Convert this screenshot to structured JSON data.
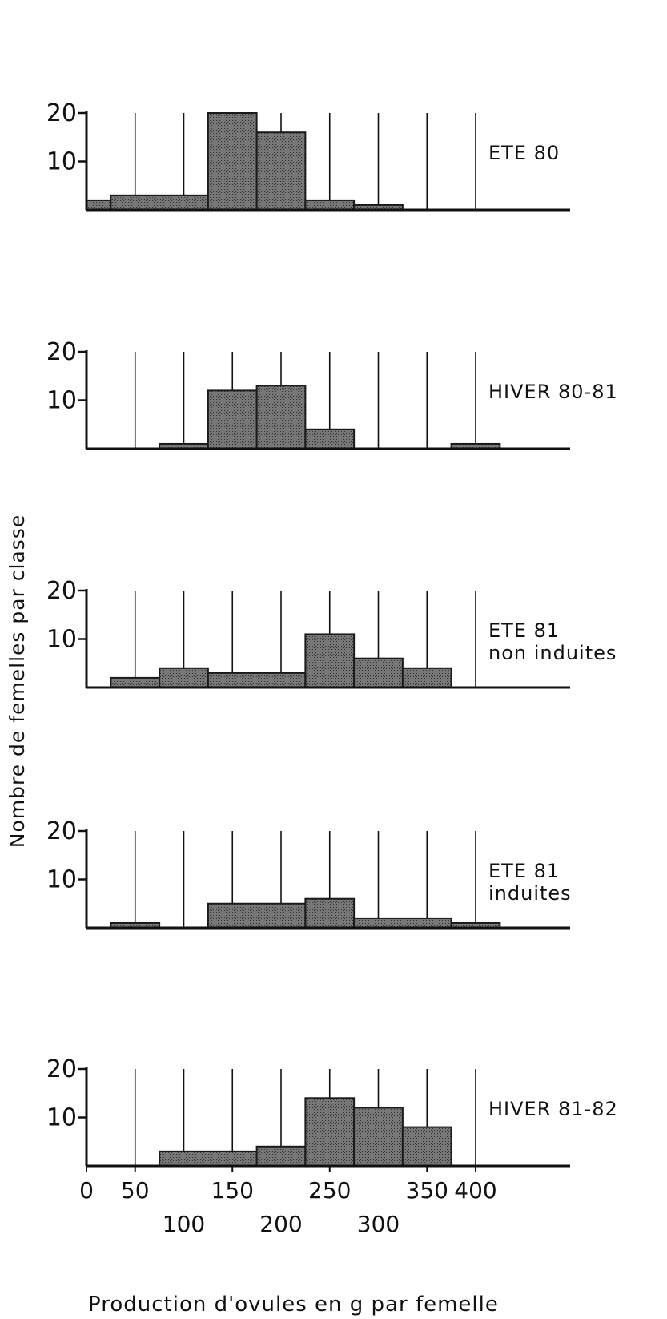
{
  "chart_data": {
    "type": "bar",
    "title": "",
    "xlabel": "Production d'ovules en g par femelle",
    "ylabel": "Nombre de femelles par classe",
    "xlim": [
      0,
      480
    ],
    "x_ticks_row1": [
      "0",
      "50",
      "150",
      "250",
      "350",
      "400"
    ],
    "x_ticks_row2": [
      "100",
      "200",
      "300"
    ],
    "x_tick_values_row1": [
      0,
      50,
      150,
      250,
      350,
      400
    ],
    "x_tick_values_row2": [
      100,
      200,
      300
    ],
    "grid_x": [
      50,
      100,
      150,
      200,
      250,
      300,
      350,
      400
    ],
    "ylim": [
      0,
      20
    ],
    "y_ticks": [
      "20",
      "10"
    ],
    "y_tick_values": [
      20,
      10
    ],
    "panels": [
      {
        "label": [
          "ETE 80"
        ],
        "bins": [
          {
            "x0": 0,
            "x1": 25,
            "count": 2
          },
          {
            "x0": 25,
            "x1": 125,
            "count": 3
          },
          {
            "x0": 125,
            "x1": 175,
            "count": 20
          },
          {
            "x0": 175,
            "x1": 225,
            "count": 16
          },
          {
            "x0": 225,
            "x1": 275,
            "count": 2
          },
          {
            "x0": 275,
            "x1": 325,
            "count": 1
          }
        ]
      },
      {
        "label": [
          "HIVER 80-81"
        ],
        "bins": [
          {
            "x0": 75,
            "x1": 125,
            "count": 1
          },
          {
            "x0": 125,
            "x1": 175,
            "count": 12
          },
          {
            "x0": 175,
            "x1": 225,
            "count": 13
          },
          {
            "x0": 225,
            "x1": 275,
            "count": 4
          },
          {
            "x0": 375,
            "x1": 425,
            "count": 1
          }
        ]
      },
      {
        "label": [
          "ETE 81",
          "non  induites"
        ],
        "bins": [
          {
            "x0": 25,
            "x1": 75,
            "count": 2
          },
          {
            "x0": 75,
            "x1": 125,
            "count": 4
          },
          {
            "x0": 125,
            "x1": 225,
            "count": 3
          },
          {
            "x0": 225,
            "x1": 275,
            "count": 11
          },
          {
            "x0": 275,
            "x1": 325,
            "count": 6
          },
          {
            "x0": 325,
            "x1": 375,
            "count": 4
          }
        ]
      },
      {
        "label": [
          "ETE 81",
          "induites"
        ],
        "bins": [
          {
            "x0": 25,
            "x1": 75,
            "count": 1
          },
          {
            "x0": 125,
            "x1": 225,
            "count": 5
          },
          {
            "x0": 225,
            "x1": 275,
            "count": 6
          },
          {
            "x0": 275,
            "x1": 375,
            "count": 2
          },
          {
            "x0": 375,
            "x1": 425,
            "count": 1
          }
        ]
      },
      {
        "label": [
          "HIVER 81-82"
        ],
        "bins": [
          {
            "x0": 75,
            "x1": 175,
            "count": 3
          },
          {
            "x0": 175,
            "x1": 225,
            "count": 4
          },
          {
            "x0": 225,
            "x1": 275,
            "count": 14
          },
          {
            "x0": 275,
            "x1": 325,
            "count": 12
          },
          {
            "x0": 325,
            "x1": 375,
            "count": 8
          }
        ]
      }
    ],
    "colors": {
      "bar_fill": "#6a6a6a",
      "bar_stroke": "#1a1a1a",
      "axis": "#111111"
    },
    "grid": true,
    "legend": "none"
  }
}
